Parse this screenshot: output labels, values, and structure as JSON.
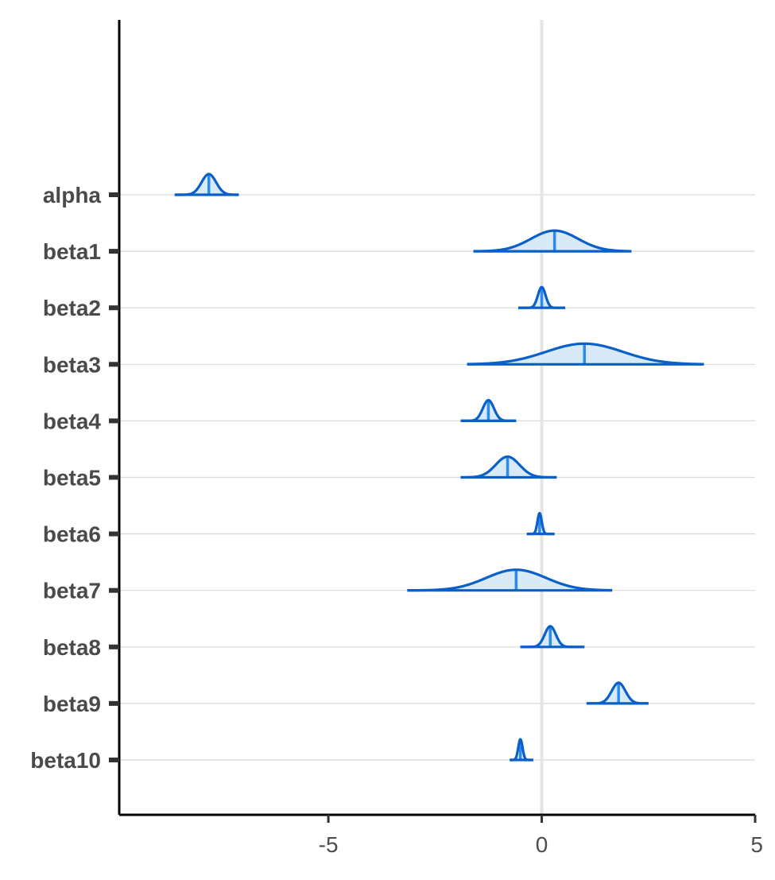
{
  "chart_data": {
    "type": "area",
    "xlim": [
      -9.9,
      5.0
    ],
    "x_ticks": [
      -5,
      0,
      5
    ],
    "x_tick_labels": [
      "-5",
      "0",
      "5"
    ],
    "reference_line_x": 0,
    "grid": "horizontal",
    "title": "",
    "xlabel": "",
    "ylabel": "",
    "colors": {
      "outline": "#0a60c8",
      "fill": "#d8e9f8",
      "median": "#2a8af0",
      "grid": "#d9d9d9",
      "zero_line": "#e4e4e4",
      "axis": "#000000"
    },
    "parameters": [
      {
        "name": "alpha",
        "median": -7.8,
        "sd": 0.17,
        "lo": -8.6,
        "hi": -7.1
      },
      {
        "name": "beta1",
        "median": 0.3,
        "sd": 0.55,
        "lo": -1.6,
        "hi": 2.1
      },
      {
        "name": "beta2",
        "median": 0.0,
        "sd": 0.09,
        "lo": -0.55,
        "hi": 0.55
      },
      {
        "name": "beta3",
        "median": 1.0,
        "sd": 0.9,
        "lo": -1.75,
        "hi": 3.8
      },
      {
        "name": "beta4",
        "median": -1.25,
        "sd": 0.13,
        "lo": -1.9,
        "hi": -0.6
      },
      {
        "name": "beta5",
        "median": -0.8,
        "sd": 0.28,
        "lo": -1.9,
        "hi": 0.35
      },
      {
        "name": "beta6",
        "median": -0.05,
        "sd": 0.05,
        "lo": -0.35,
        "hi": 0.3
      },
      {
        "name": "beta7",
        "median": -0.6,
        "sd": 0.7,
        "lo": -3.15,
        "hi": 1.65
      },
      {
        "name": "beta8",
        "median": 0.2,
        "sd": 0.13,
        "lo": -0.5,
        "hi": 1.0
      },
      {
        "name": "beta9",
        "median": 1.8,
        "sd": 0.16,
        "lo": 1.05,
        "hi": 2.5
      },
      {
        "name": "beta10",
        "median": -0.5,
        "sd": 0.05,
        "lo": -0.75,
        "hi": -0.2
      }
    ]
  }
}
